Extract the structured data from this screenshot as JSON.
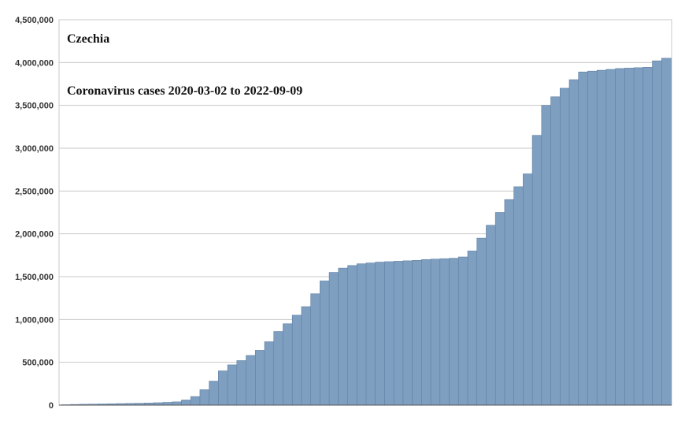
{
  "chart_data": {
    "type": "bar",
    "title": "Czechia",
    "subtitle": "Coronavirus cases  2020-03-02 to 2022-09-09",
    "x_start": "2020-03-02",
    "x_end": "2022-09-09",
    "ylim": [
      0,
      4500000
    ],
    "yticks": [
      0,
      500000,
      1000000,
      1500000,
      2000000,
      2500000,
      3000000,
      3500000,
      4000000,
      4500000
    ],
    "ytick_labels": [
      "0",
      "500,000",
      "1,000,000",
      "1,500,000",
      "2,000,000",
      "2,500,000",
      "3,000,000",
      "3,500,000",
      "4,000,000",
      "4,500,000"
    ],
    "grid": "horizontal",
    "legend": "none",
    "bar_color": "#7f9fc0",
    "bar_edge_color": "#5d7ea3",
    "series": [
      {
        "values": [
          5000,
          8000,
          10000,
          12000,
          14000,
          16000,
          18000,
          20000,
          22000,
          25000,
          28000,
          32000,
          38000,
          60000,
          100000,
          180000,
          280000,
          400000,
          470000,
          520000,
          580000,
          640000,
          740000,
          860000,
          950000,
          1050000,
          1150000,
          1300000,
          1450000,
          1550000,
          1600000,
          1630000,
          1650000,
          1660000,
          1670000,
          1675000,
          1680000,
          1685000,
          1690000,
          1700000,
          1705000,
          1710000,
          1715000,
          1730000,
          1800000,
          1950000,
          2100000,
          2250000,
          2400000,
          2550000,
          2700000,
          3150000,
          3500000,
          3600000,
          3700000,
          3800000,
          3890000,
          3900000,
          3910000,
          3920000,
          3930000,
          3935000,
          3940000,
          3945000,
          4020000,
          4050000
        ]
      }
    ]
  }
}
